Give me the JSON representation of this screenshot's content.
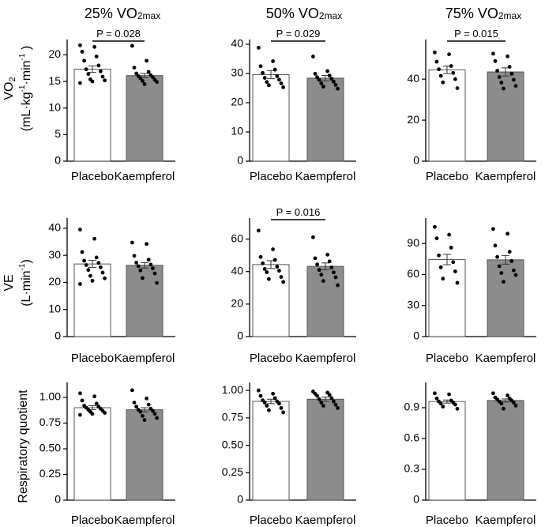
{
  "colors": {
    "placebo": "#ffffff",
    "kaempferol": "#8c8c8c",
    "edge": "#555555",
    "dot": "#000000",
    "axis": "#000000"
  },
  "column_titles": [
    {
      "pct": "25% VO",
      "sub": "2max"
    },
    {
      "pct": "50% VO",
      "sub": "2max"
    },
    {
      "pct": "75% VO",
      "sub": "2max"
    }
  ],
  "row_labels": [
    {
      "main": "VO",
      "main_sub": "2",
      "unit_a": "(mL·kg",
      "unit_sup1": "-1",
      "unit_b": "·min",
      "unit_sup2": "-1",
      "unit_c": " )"
    },
    {
      "main": "VE",
      "unit_a": "(L·min",
      "unit_sup1": "-1",
      "unit_c": ")"
    },
    {
      "main": "Respiratory quotient"
    }
  ],
  "chart_data": [
    {
      "type": "bar",
      "row": 0,
      "col": 0,
      "categories": [
        "Placebo",
        "Kaempferol"
      ],
      "values": [
        17.3,
        16.1
      ],
      "sem": [
        0.6,
        0.4
      ],
      "ylim": [
        0,
        22
      ],
      "yticks": [
        0,
        5,
        10,
        15,
        20
      ],
      "tick_labels": [
        "0",
        "5",
        "10",
        "15",
        "20"
      ],
      "pvalue": "P = 0.028",
      "points": [
        [
          21.8,
          21.5,
          20.6,
          19.7,
          18.9,
          18.0,
          17.3,
          16.9,
          16.4,
          15.9,
          15.4,
          15.2,
          15.0,
          14.7
        ],
        [
          21.7,
          18.9,
          17.6,
          16.8,
          16.5,
          16.2,
          16.0,
          15.8,
          15.6,
          15.3,
          15.1,
          14.9,
          14.5
        ]
      ]
    },
    {
      "type": "bar",
      "row": 0,
      "col": 1,
      "categories": [
        "Placebo",
        "Kaempferol"
      ],
      "values": [
        29.6,
        28.4
      ],
      "sem": [
        1.4,
        0.9
      ],
      "ylim": [
        0,
        40
      ],
      "yticks": [
        0,
        10,
        20,
        30,
        40
      ],
      "tick_labels": [
        "0",
        "10",
        "20",
        "30",
        "40"
      ],
      "pvalue": "P = 0.029",
      "points": [
        [
          38.8,
          34.2,
          32.5,
          31.3,
          30.2,
          29.1,
          28.5,
          27.9,
          27.1,
          26.6,
          26.0,
          25.3
        ],
        [
          35.8,
          30.8,
          29.9,
          29.3,
          28.7,
          28.2,
          27.8,
          27.2,
          26.6,
          26.1,
          25.5,
          24.8
        ]
      ]
    },
    {
      "type": "bar",
      "row": 0,
      "col": 2,
      "categories": [
        "Placebo",
        "Kaempferol"
      ],
      "values": [
        44.5,
        43.5
      ],
      "sem": [
        1.8,
        2.0
      ],
      "ylim": [
        0,
        57
      ],
      "yticks": [
        0,
        20,
        40
      ],
      "tick_labels": [
        "0",
        "20",
        "40"
      ],
      "pvalue": "P = 0.015",
      "points": [
        [
          53.0,
          52.1,
          48.5,
          46.4,
          44.8,
          43.0,
          41.6,
          40.0,
          38.4,
          35.6
        ],
        [
          52.4,
          51.1,
          48.8,
          46.0,
          44.1,
          42.6,
          41.0,
          39.7,
          38.3,
          36.7,
          35.4
        ]
      ]
    },
    {
      "type": "bar",
      "row": 1,
      "col": 0,
      "categories": [
        "Placebo",
        "Kaempferol"
      ],
      "values": [
        26.8,
        26.3
      ],
      "sem": [
        1.3,
        1.0
      ],
      "ylim": [
        0,
        42
      ],
      "yticks": [
        0,
        10,
        20,
        30,
        40
      ],
      "tick_labels": [
        "0",
        "10",
        "20",
        "30",
        "40"
      ],
      "pvalue": "",
      "points": [
        [
          39.5,
          36.1,
          31.2,
          29.2,
          28.0,
          27.2,
          26.4,
          25.6,
          24.6,
          23.6,
          22.4,
          21.5,
          20.6,
          19.4
        ],
        [
          34.7,
          34.2,
          29.8,
          28.4,
          27.3,
          26.6,
          26.0,
          25.2,
          24.4,
          23.3,
          21.6,
          19.8
        ]
      ]
    },
    {
      "type": "bar",
      "row": 1,
      "col": 1,
      "categories": [
        "Placebo",
        "Kaempferol"
      ],
      "values": [
        44.3,
        43.2
      ],
      "sem": [
        2.4,
        2.1
      ],
      "ylim": [
        0,
        70
      ],
      "yticks": [
        0,
        20,
        40,
        60
      ],
      "tick_labels": [
        "0",
        "20",
        "40",
        "60"
      ],
      "pvalue": "P = 0.016",
      "points": [
        [
          65.2,
          53.7,
          49.0,
          47.2,
          45.1,
          43.0,
          41.6,
          40.5,
          39.6,
          36.7,
          35.4,
          33.6
        ],
        [
          61.1,
          50.4,
          48.2,
          46.3,
          44.4,
          42.5,
          41.0,
          39.5,
          38.1,
          36.5,
          34.2,
          31.6
        ]
      ]
    },
    {
      "type": "bar",
      "row": 1,
      "col": 2,
      "categories": [
        "Placebo",
        "Kaempferol"
      ],
      "values": [
        74.5,
        74.2
      ],
      "sem": [
        5.0,
        4.2
      ],
      "ylim": [
        0,
        110
      ],
      "yticks": [
        0,
        30,
        60,
        90
      ],
      "tick_labels": [
        "0",
        "30",
        "60",
        "90"
      ],
      "pvalue": "",
      "points": [
        [
          106.0,
          98.5,
          95.0,
          86.0,
          78.5,
          72.0,
          67.0,
          63.0,
          56.0,
          52.0
        ],
        [
          104.0,
          99.5,
          88.0,
          82.0,
          77.0,
          73.0,
          68.0,
          64.0,
          61.5,
          59.5,
          53.0
        ]
      ]
    },
    {
      "type": "bar",
      "row": 2,
      "col": 0,
      "categories": [
        "Placebo",
        "Kaempferol"
      ],
      "values": [
        0.9,
        0.88
      ],
      "sem": [
        0.02,
        0.02
      ],
      "ylim": [
        0,
        1.1
      ],
      "yticks": [
        0,
        0.25,
        0.5,
        0.75,
        1.0
      ],
      "tick_labels": [
        "0",
        "0.25",
        "0.50",
        "0.75",
        "1.00"
      ],
      "pvalue": "",
      "points": [
        [
          1.04,
          1.01,
          0.97,
          0.94,
          0.92,
          0.91,
          0.9,
          0.89,
          0.88,
          0.87,
          0.86,
          0.85,
          0.84,
          0.83
        ],
        [
          1.07,
          0.99,
          0.95,
          0.93,
          0.91,
          0.89,
          0.88,
          0.87,
          0.86,
          0.84,
          0.82,
          0.8,
          0.78
        ]
      ]
    },
    {
      "type": "bar",
      "row": 2,
      "col": 1,
      "categories": [
        "Placebo",
        "Kaempferol"
      ],
      "values": [
        0.9,
        0.92
      ],
      "sem": [
        0.02,
        0.02
      ],
      "ylim": [
        0,
        1.03
      ],
      "yticks": [
        0,
        0.25,
        0.5,
        0.75,
        1.0
      ],
      "tick_labels": [
        "0",
        "0.25",
        "0.50",
        "0.75",
        "1.00"
      ],
      "pvalue": "",
      "points": [
        [
          1.0,
          0.97,
          0.95,
          0.93,
          0.91,
          0.9,
          0.89,
          0.88,
          0.86,
          0.84,
          0.82,
          0.8
        ],
        [
          0.99,
          0.98,
          0.97,
          0.96,
          0.95,
          0.93,
          0.92,
          0.9,
          0.89,
          0.87,
          0.86,
          0.84
        ]
      ]
    },
    {
      "type": "bar",
      "row": 2,
      "col": 2,
      "categories": [
        "Placebo",
        "Kaempferol"
      ],
      "values": [
        0.96,
        0.97
      ],
      "sem": [
        0.015,
        0.015
      ],
      "ylim": [
        0,
        1.1
      ],
      "yticks": [
        0,
        0.3,
        0.6,
        0.9
      ],
      "tick_labels": [
        "0",
        "0.3",
        "0.6",
        "0.9"
      ],
      "pvalue": "",
      "points": [
        [
          1.04,
          1.03,
          0.99,
          0.97,
          0.96,
          0.95,
          0.94,
          0.93,
          0.91,
          0.89
        ],
        [
          1.04,
          1.02,
          1.0,
          0.99,
          0.98,
          0.97,
          0.96,
          0.95,
          0.94,
          0.92,
          0.89
        ]
      ]
    }
  ]
}
